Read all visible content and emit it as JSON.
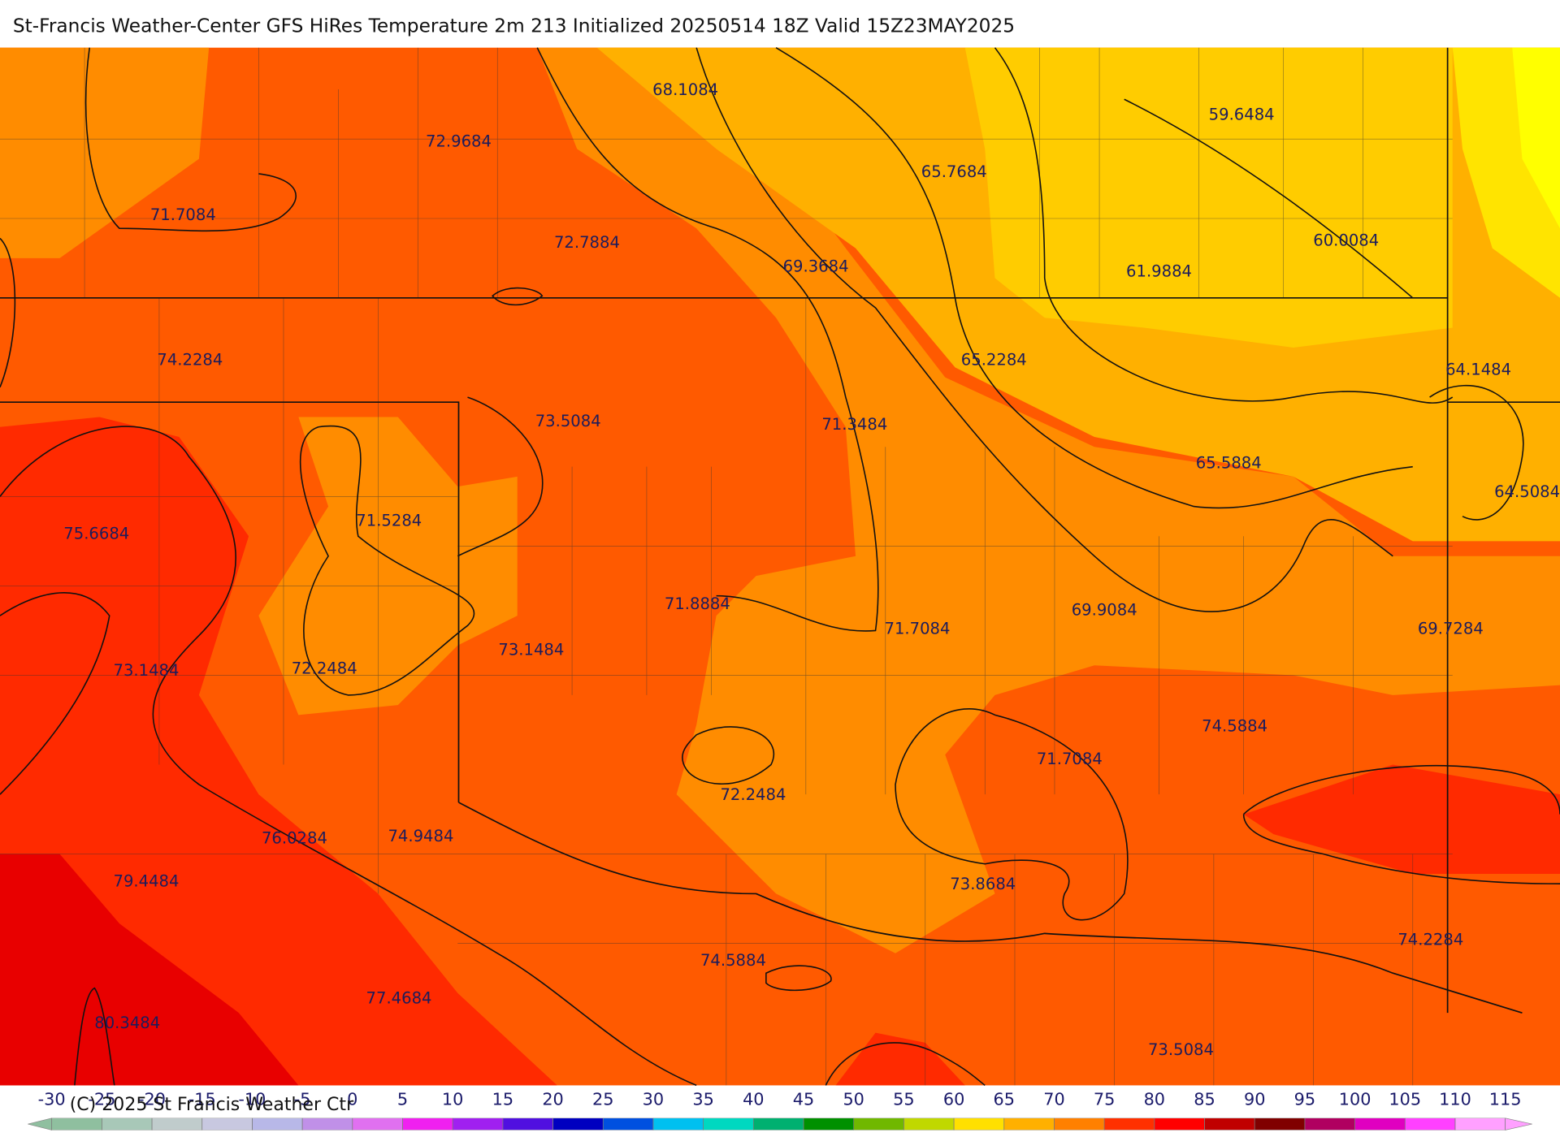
{
  "header": {
    "title": "St-Francis Weather-Center GFS HiRes Temperature 2m  213 Initialized 20250514 18Z Valid 15Z23MAY2025"
  },
  "map": {
    "labels": [
      "68.1084",
      "72.9684",
      "59.6484",
      "65.7684",
      "71.7084",
      "72.7884",
      "69.3684",
      "61.9884",
      "60.0084",
      "74.2284",
      "65.2284",
      "64.1484",
      "73.5084",
      "71.3484",
      "65.5884",
      "64.5084",
      "75.6684",
      "71.5284",
      "71.8884",
      "69.9084",
      "71.7084",
      "69.7284",
      "73.1484",
      "72.2484",
      "73.1484",
      "74.5884",
      "71.7084",
      "72.2484",
      "76.0284",
      "74.9484",
      "73.8684",
      "79.4484",
      "74.2284",
      "74.5884",
      "77.4684",
      "80.3484",
      "73.5084"
    ]
  },
  "colorbar": {
    "ticks": [
      -30,
      -25,
      -20,
      -15,
      -10,
      -5,
      0,
      5,
      10,
      15,
      20,
      25,
      30,
      35,
      40,
      45,
      50,
      55,
      60,
      65,
      70,
      75,
      80,
      85,
      90,
      95,
      100,
      105,
      110,
      115
    ],
    "colors": [
      "#8fbf9f",
      "#a8c8b8",
      "#c0cccc",
      "#c8c8e0",
      "#b8b8e8",
      "#c090e8",
      "#e070f0",
      "#f020f0",
      "#a020f0",
      "#5010e0",
      "#0000c0",
      "#0050e0",
      "#00c0f0",
      "#00d8c0",
      "#00b070",
      "#009000",
      "#70b800",
      "#c0d800",
      "#ffe000",
      "#ffb000",
      "#ff8000",
      "#ff3000",
      "#ff0000",
      "#c00000",
      "#800000",
      "#b00060",
      "#e000c0",
      "#ff40ff",
      "#ffa0ff"
    ]
  },
  "footer": {
    "copyright": "(C) 2025 St Francis Weather Ctr"
  }
}
